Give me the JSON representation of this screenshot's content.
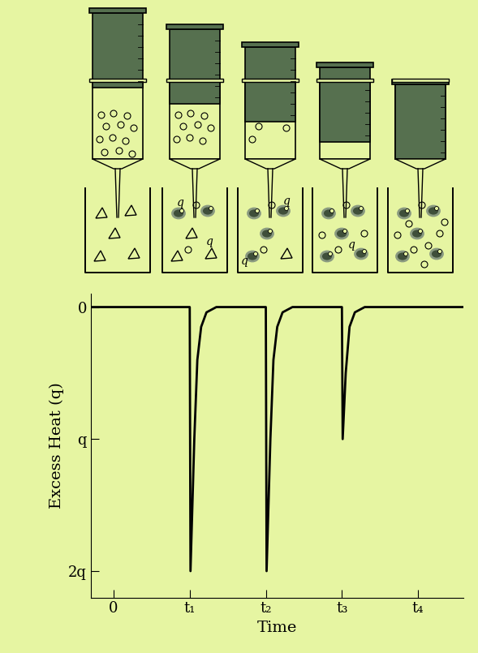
{
  "chart_data": {
    "type": "line",
    "y_label": "Excess Heat (q)",
    "x_label": "Time",
    "x": [
      -0.28,
      1.0,
      1.01,
      1.06,
      1.1,
      1.15,
      1.22,
      1.35,
      2.0,
      2.01,
      2.06,
      2.1,
      2.15,
      2.22,
      2.35,
      3.0,
      3.01,
      3.05,
      3.1,
      3.17,
      3.3,
      4.6
    ],
    "values": [
      0,
      0,
      2,
      1.0,
      0.4,
      0.15,
      0.04,
      0,
      0,
      2,
      1.0,
      0.4,
      0.15,
      0.04,
      0,
      0,
      1,
      0.5,
      0.15,
      0.04,
      0,
      0
    ],
    "color": "#000000",
    "xlim": [
      -0.3,
      4.6
    ],
    "xticks": [
      0,
      {
        "value": 1,
        "label": "t₁"
      },
      {
        "value": 2,
        "label": "t₂"
      },
      {
        "value": 3,
        "label": "t₃"
      },
      {
        "value": 4,
        "label": "t₄"
      }
    ],
    "ylim": [
      2.2,
      -0.1
    ],
    "yticks": [
      0,
      {
        "value": 1,
        "label": "q"
      },
      {
        "value": 2,
        "label": "2q"
      }
    ],
    "grid": false
  },
  "diagram": {
    "beaker_labels": [
      [],
      [
        "q",
        "q"
      ],
      [
        "q",
        "q"
      ],
      [
        "q"
      ],
      []
    ]
  }
}
